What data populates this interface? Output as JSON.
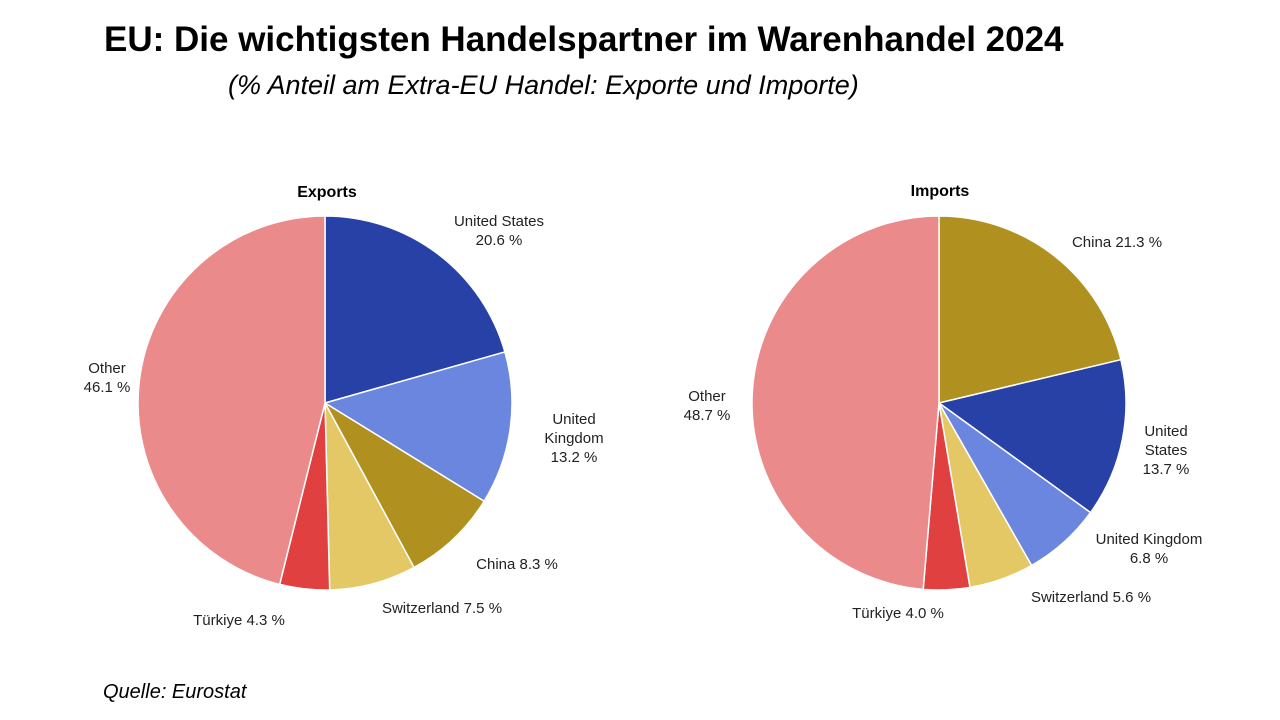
{
  "header": {
    "title": "EU: Die wichtigsten Handelspartner im Warenhandel 2024",
    "subtitle": "(% Anteil am Extra-EU Handel: Exporte und Importe)"
  },
  "footer": {
    "source": "Quelle: Eurostat"
  },
  "colors": {
    "navy": "#2841a6",
    "periwinkle": "#6b86de",
    "olive": "#b0901f",
    "yellow": "#e5c866",
    "red": "#e04040",
    "pink": "#eb8a8b"
  },
  "chart_data": [
    {
      "type": "pie",
      "title": "Exports",
      "start_angle_deg": 0,
      "direction": "clockwise",
      "slices": [
        {
          "label": "United States 20.6 %",
          "label_lines": [
            "United States",
            "20.6 %"
          ],
          "value": 20.6,
          "color": "#2841a6"
        },
        {
          "label": "United Kingdom 13.2 %",
          "label_lines": [
            "United",
            "Kingdom",
            "13.2 %"
          ],
          "value": 13.2,
          "color": "#6b86de"
        },
        {
          "label": "China 8.3 %",
          "label_lines": [
            "China 8.3 %"
          ],
          "value": 8.3,
          "color": "#b0901f"
        },
        {
          "label": "Switzerland 7.5 %",
          "label_lines": [
            "Switzerland  7.5 %"
          ],
          "value": 7.5,
          "color": "#e5c866"
        },
        {
          "label": "Türkiye 4.3 %",
          "label_lines": [
            "Türkiye 4.3 %"
          ],
          "value": 4.3,
          "color": "#e04040"
        },
        {
          "label": "Other 46.1 %",
          "label_lines": [
            "Other",
            "46.1 %"
          ],
          "value": 46.1,
          "color": "#eb8a8b"
        }
      ]
    },
    {
      "type": "pie",
      "title": "Imports",
      "start_angle_deg": 0,
      "direction": "clockwise",
      "slices": [
        {
          "label": "China 21.3 %",
          "label_lines": [
            "China 21.3 %"
          ],
          "value": 21.3,
          "color": "#b0901f"
        },
        {
          "label": "United States 13.7 %",
          "label_lines": [
            "United",
            "States",
            "13.7 %"
          ],
          "value": 13.7,
          "color": "#2841a6"
        },
        {
          "label": "United Kingdom 6.8 %",
          "label_lines": [
            "United  Kingdom",
            "6.8 %"
          ],
          "value": 6.8,
          "color": "#6b86de"
        },
        {
          "label": "Switzerland 5.6 %",
          "label_lines": [
            "Switzerland  5.6 %"
          ],
          "value": 5.6,
          "color": "#e5c866"
        },
        {
          "label": "Türkiye 4.0 %",
          "label_lines": [
            "Türkiye 4.0 %"
          ],
          "value": 4.0,
          "color": "#e04040"
        },
        {
          "label": "Other 48.7 %",
          "label_lines": [
            "Other",
            "48.7 %"
          ],
          "value": 48.7,
          "color": "#eb8a8b"
        }
      ]
    }
  ]
}
